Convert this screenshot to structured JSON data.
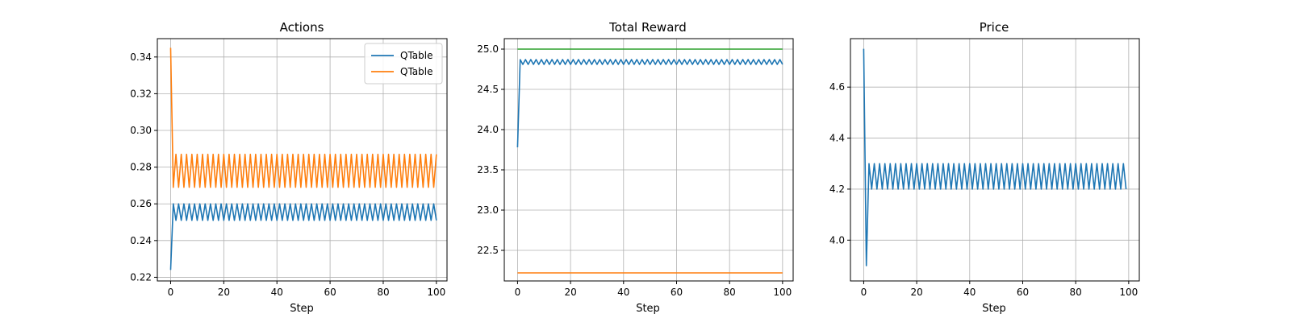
{
  "colors": {
    "blue": "#1f77b4",
    "orange": "#ff7f0e",
    "green": "#2ca02c",
    "grid": "#b0b0b0",
    "axis": "#000000"
  },
  "chart_data": [
    {
      "type": "line",
      "title": "Actions",
      "xlabel": "Step",
      "ylabel": "",
      "xlim": [
        -5,
        104
      ],
      "ylim": [
        0.218,
        0.35
      ],
      "xticks": [
        0,
        20,
        40,
        60,
        80,
        100
      ],
      "yticks": [
        0.22,
        0.24,
        0.26,
        0.28,
        0.3,
        0.32,
        0.34
      ],
      "ytick_decimals": 2,
      "grid": true,
      "legend": "upper right",
      "series": [
        {
          "name": "QTable",
          "color": "#1f77b4",
          "pattern": {
            "x_start": 0,
            "x_end": 100,
            "initial": 0.224,
            "after_first": "alternate",
            "high": 0.26,
            "low": 0.251,
            "phase": "high"
          }
        },
        {
          "name": "QTable",
          "color": "#ff7f0e",
          "pattern": {
            "x_start": 0,
            "x_end": 100,
            "initial": 0.345,
            "after_first": "alternate",
            "high": 0.287,
            "low": 0.269,
            "phase": "low"
          }
        }
      ]
    },
    {
      "type": "line",
      "title": "Total Reward",
      "xlabel": "Step",
      "ylabel": "",
      "xlim": [
        -5,
        104
      ],
      "ylim": [
        22.12,
        25.13
      ],
      "xticks": [
        0,
        20,
        40,
        60,
        80,
        100
      ],
      "yticks": [
        22.5,
        23.0,
        23.5,
        24.0,
        24.5,
        25.0
      ],
      "ytick_decimals": 1,
      "grid": true,
      "legend": "none",
      "series": [
        {
          "color": "#1f77b4",
          "pattern": {
            "x_start": 0,
            "x_end": 100,
            "initial": 23.78,
            "after_first": "alternate",
            "high": 24.87,
            "low": 24.81,
            "phase": "high"
          }
        },
        {
          "color": "#2ca02c",
          "pattern": {
            "x_start": 0,
            "x_end": 100,
            "constant": 25.0
          }
        },
        {
          "color": "#ff7f0e",
          "pattern": {
            "x_start": 0,
            "x_end": 100,
            "constant": 22.22
          }
        }
      ]
    },
    {
      "type": "line",
      "title": "Price",
      "xlabel": "Step",
      "ylabel": "",
      "xlim": [
        -5,
        104
      ],
      "ylim": [
        3.84,
        4.79
      ],
      "xticks": [
        0,
        20,
        40,
        60,
        80,
        100
      ],
      "yticks": [
        4.0,
        4.2,
        4.4,
        4.6
      ],
      "ytick_decimals": 1,
      "grid": true,
      "legend": "none",
      "series": [
        {
          "color": "#1f77b4",
          "pattern": {
            "x_start": 0,
            "x_end": 99,
            "initial": 4.75,
            "second": 3.9,
            "after_first": "alternate",
            "high": 4.3,
            "low": 4.2,
            "phase": "high"
          }
        }
      ]
    }
  ]
}
